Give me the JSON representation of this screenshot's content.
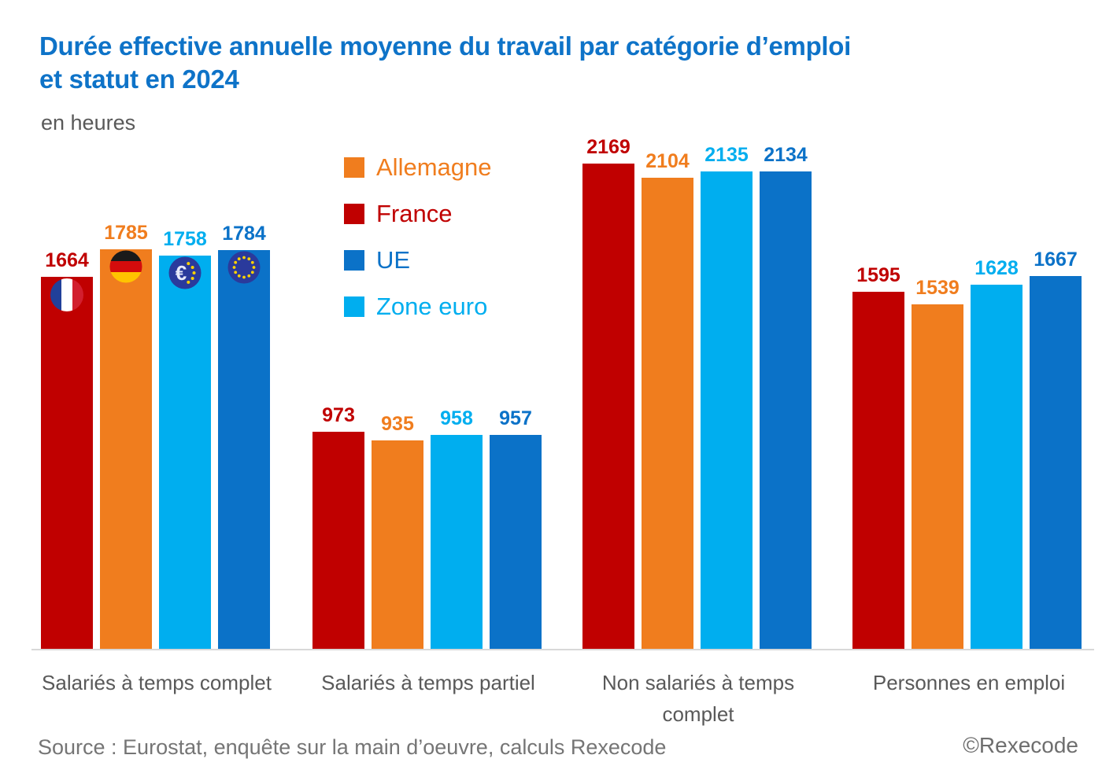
{
  "title": {
    "line1": "Durée effective annuelle moyenne du travail par catégorie d’emploi",
    "line2": "et statut en 2024"
  },
  "subtitle": "en heures",
  "footer": {
    "source": "Source : Eurostat, enquête sur la main d’oeuvre, calculs Rexecode",
    "copyright": "©Rexecode"
  },
  "colors": {
    "title_blue": "#0e73c8",
    "axis_text_gray": "#595959",
    "source_gray": "#757575",
    "baseline_gray": "#d8d8d8",
    "icon_navy": "#2a3a9c",
    "icon_star_yellow": "#ffd200"
  },
  "chart_data": {
    "type": "bar",
    "title": "Durée effective annuelle moyenne du travail par catégorie d’emploi et statut en 2024",
    "unit": "en heures",
    "ylim": [
      0,
      2400
    ],
    "grid": false,
    "value_labels": true,
    "legend_position": "upper-left-of-center",
    "categories": [
      "Salariés à temps complet",
      "Salariés à temps partiel",
      "Non salariés à temps complet",
      "Personnes en emploi"
    ],
    "legend_order": [
      "Allemagne",
      "France",
      "UE",
      "Zone euro"
    ],
    "bar_order": [
      "France",
      "Allemagne",
      "Zone euro",
      "UE"
    ],
    "series": [
      {
        "name": "Allemagne",
        "color": "#f07d1e",
        "icon": "germany-flag-icon",
        "values": [
          1785,
          935,
          2104,
          1539
        ]
      },
      {
        "name": "France",
        "color": "#c00000",
        "icon": "france-flag-icon",
        "values": [
          1664,
          973,
          2169,
          1595
        ]
      },
      {
        "name": "UE",
        "color": "#0b72c8",
        "icon": "eu-flag-icon",
        "values": [
          1784,
          957,
          2134,
          1667
        ]
      },
      {
        "name": "Zone euro",
        "color": "#00aeef",
        "icon": "euro-icon",
        "values": [
          1758,
          958,
          2135,
          1628
        ]
      }
    ],
    "icons_shown_on_category_index": 0
  }
}
